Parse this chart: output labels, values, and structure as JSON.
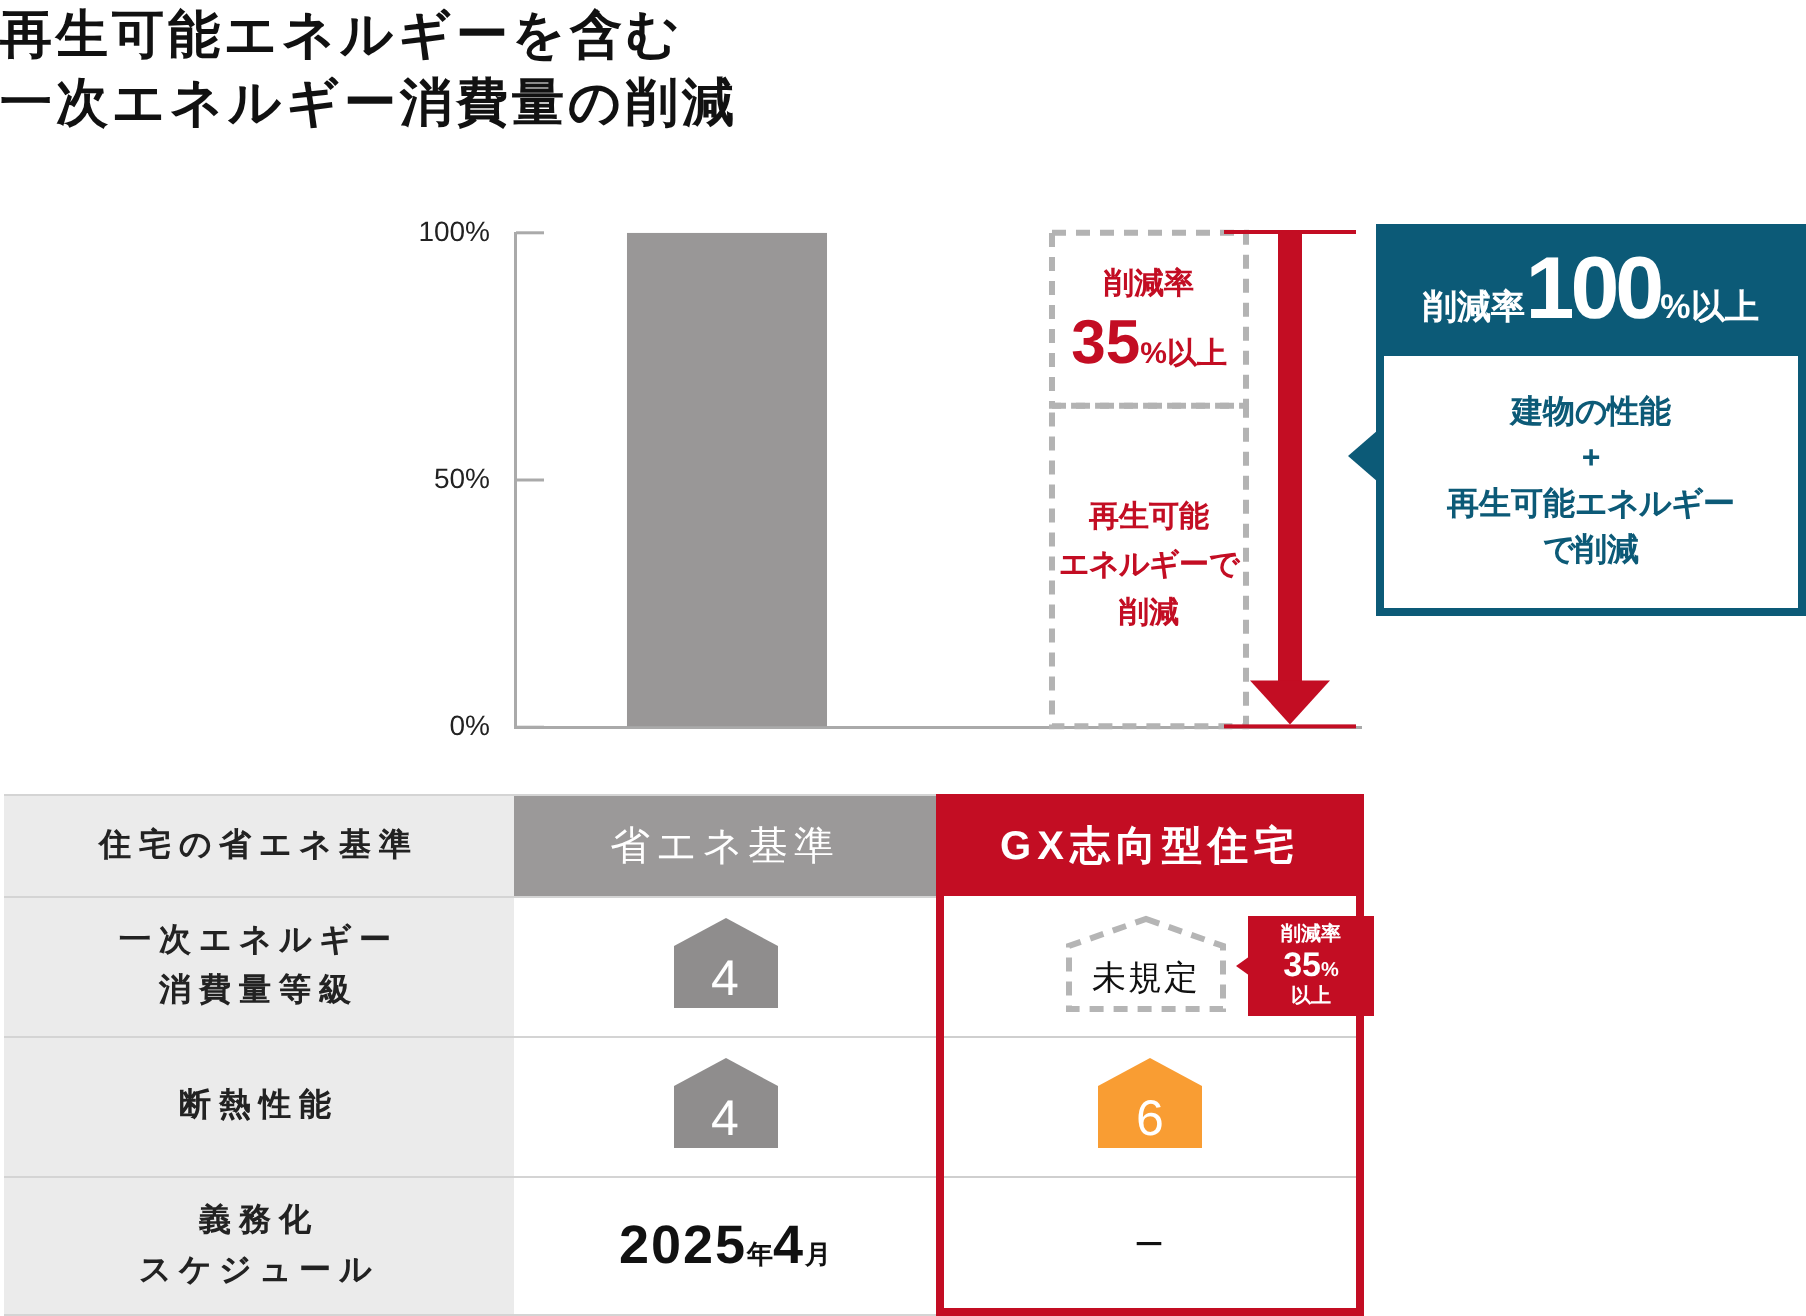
{
  "chart_data": {
    "type": "bar",
    "title": "再生可能エネルギーを含む一次エネルギー消費量の削減",
    "xlabel": "住宅の省エネ基準",
    "categories": [
      "省エネ基準",
      "GX志向型住宅"
    ],
    "series": [
      {
        "color": "#999797",
        "values": [
          100,
          null
        ]
      },
      {
        "color": "#b3b3b3",
        "line_style": "dashed",
        "values": [
          null,
          65
        ]
      },
      {
        "color": "#b3b3b3",
        "line_style": "dashed",
        "values": [
          null,
          35
        ]
      }
    ],
    "stacked": true,
    "ylim": [
      0,
      100
    ],
    "yticks": [
      {
        "value": 0,
        "label": "0%"
      },
      {
        "value": 50,
        "label": "50%"
      },
      {
        "value": 100,
        "label": "100%"
      }
    ],
    "annotations": [
      "削減率\n35%以上",
      "再生可能エネルギーで削減",
      "削減率100%以上",
      "建物の性能\n+\n再生可能エネルギーで削減",
      "一次エネルギー消費量等級",
      "4",
      "未規定",
      "削減率\n35%\n以上",
      "断熱性能",
      "4",
      "6",
      "義務化スケジュール",
      "2025年4月",
      "ー"
    ]
  }
}
